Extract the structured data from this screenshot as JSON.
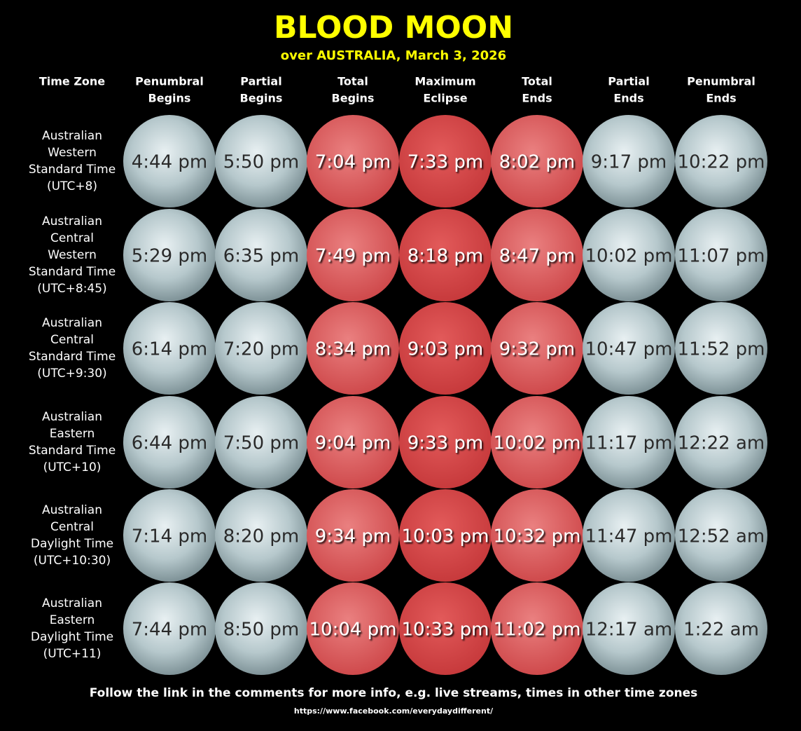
{
  "header": {
    "title": "BLOOD MOON",
    "subtitle": "over AUSTRALIA, March 3, 2026"
  },
  "table": {
    "columns": [
      [
        "Time Zone"
      ],
      [
        "Penumbral",
        "Begins"
      ],
      [
        "Partial",
        "Begins"
      ],
      [
        "Total",
        "Begins"
      ],
      [
        "Maximum",
        "Eclipse"
      ],
      [
        "Total",
        "Ends"
      ],
      [
        "Partial",
        "Ends"
      ],
      [
        "Penumbral",
        "Ends"
      ]
    ],
    "rows": [
      {
        "zone": [
          "Australian",
          "Western",
          "Standard Time",
          "(UTC+8)"
        ],
        "times": [
          "4:44 pm",
          "5:50 pm",
          "7:04 pm",
          "7:33 pm",
          "8:02 pm",
          "9:17 pm",
          "10:22 pm"
        ]
      },
      {
        "zone": [
          "Australian",
          "Central",
          "Western",
          "Standard Time",
          "(UTC+8:45)"
        ],
        "times": [
          "5:29 pm",
          "6:35 pm",
          "7:49 pm",
          "8:18 pm",
          "8:47 pm",
          "10:02 pm",
          "11:07 pm"
        ]
      },
      {
        "zone": [
          "Australian",
          "Central",
          "Standard Time",
          "(UTC+9:30)"
        ],
        "times": [
          "6:14 pm",
          "7:20 pm",
          "8:34 pm",
          "9:03 pm",
          "9:32 pm",
          "10:47 pm",
          "11:52 pm"
        ]
      },
      {
        "zone": [
          "Australian",
          "Eastern",
          "Standard Time",
          "(UTC+10)"
        ],
        "times": [
          "6:44 pm",
          "7:50 pm",
          "9:04 pm",
          "9:33 pm",
          "10:02 pm",
          "11:17 pm",
          "12:22 am"
        ]
      },
      {
        "zone": [
          "Australian",
          "Central",
          "Daylight Time",
          "(UTC+10:30)"
        ],
        "times": [
          "7:14 pm",
          "8:20 pm",
          "9:34 pm",
          "10:03 pm",
          "10:32 pm",
          "11:47 pm",
          "12:52 am"
        ]
      },
      {
        "zone": [
          "Australian",
          "Eastern",
          "Daylight Time",
          "(UTC+11)"
        ],
        "times": [
          "7:44 pm",
          "8:50 pm",
          "10:04 pm",
          "10:33 pm",
          "11:02 pm",
          "12:17 am",
          "1:22 am"
        ]
      }
    ]
  },
  "footer": {
    "note": "Follow the link in the comments for more info, e.g. live streams, times in other time zones",
    "url": "https://www.facebook.com/everydaydifferent/"
  }
}
